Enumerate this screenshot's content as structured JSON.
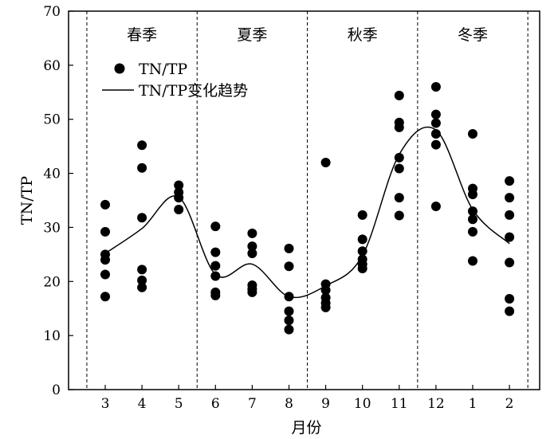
{
  "chart_data": {
    "type": "scatter",
    "title": "",
    "xlabel": "月份",
    "ylabel": "TN/TP",
    "ylim": [
      0,
      70
    ],
    "yticks": [
      0,
      10,
      20,
      30,
      40,
      50,
      60,
      70
    ],
    "categories": [
      "3",
      "4",
      "5",
      "6",
      "7",
      "8",
      "9",
      "10",
      "11",
      "12",
      "1",
      "2"
    ],
    "seasons": [
      {
        "label": "春季",
        "months": [
          "3",
          "4",
          "5"
        ]
      },
      {
        "label": "夏季",
        "months": [
          "6",
          "7",
          "8"
        ]
      },
      {
        "label": "秋季",
        "months": [
          "9",
          "10",
          "11"
        ]
      },
      {
        "label": "冬季",
        "months": [
          "12",
          "1",
          "2"
        ]
      }
    ],
    "legend": {
      "position": "top-left",
      "entries": [
        {
          "label": "TN/TP",
          "marker": "circle"
        },
        {
          "label": "TN/TP变化趋势",
          "marker": "line"
        }
      ]
    },
    "series": [
      {
        "name": "TN/TP",
        "kind": "points",
        "color": "#000000",
        "points": [
          {
            "x": "3",
            "values": [
              34.2,
              29.2,
              25.0,
              24.0,
              21.3,
              17.2
            ]
          },
          {
            "x": "4",
            "values": [
              45.2,
              41.0,
              31.8,
              22.2,
              20.2,
              18.9
            ]
          },
          {
            "x": "5",
            "values": [
              37.8,
              36.5,
              35.5,
              33.3
            ]
          },
          {
            "x": "6",
            "values": [
              30.2,
              25.4,
              22.9,
              21.0,
              18.0,
              17.4
            ]
          },
          {
            "x": "7",
            "values": [
              28.9,
              26.5,
              25.2,
              19.3,
              18.6,
              18.0
            ]
          },
          {
            "x": "8",
            "values": [
              26.1,
              22.8,
              17.2,
              14.5,
              12.8,
              11.1
            ]
          },
          {
            "x": "9",
            "values": [
              42.0,
              19.5,
              18.4,
              17.0,
              16.0,
              15.2
            ]
          },
          {
            "x": "10",
            "values": [
              32.3,
              27.8,
              25.6,
              24.1,
              23.2,
              22.4
            ]
          },
          {
            "x": "11",
            "values": [
              54.4,
              49.4,
              48.5,
              42.9,
              40.9,
              35.5,
              32.2
            ]
          },
          {
            "x": "12",
            "values": [
              56.0,
              50.9,
              49.3,
              47.3,
              45.3,
              33.9
            ]
          },
          {
            "x": "1",
            "values": [
              47.3,
              37.2,
              36.1,
              33.0,
              31.5,
              29.2,
              23.8
            ]
          },
          {
            "x": "2",
            "values": [
              38.6,
              35.5,
              32.3,
              28.2,
              23.5,
              16.8,
              14.5
            ]
          }
        ]
      },
      {
        "name": "TN/TP变化趋势",
        "kind": "line",
        "color": "#000000",
        "x": [
          "3",
          "4",
          "5",
          "6",
          "7",
          "8",
          "9",
          "10",
          "11",
          "12",
          "1",
          "2"
        ],
        "values": [
          25.2,
          29.8,
          35.6,
          21.3,
          23.2,
          17.2,
          19.2,
          24.8,
          43.5,
          48.0,
          33.3,
          27.0
        ]
      }
    ]
  }
}
